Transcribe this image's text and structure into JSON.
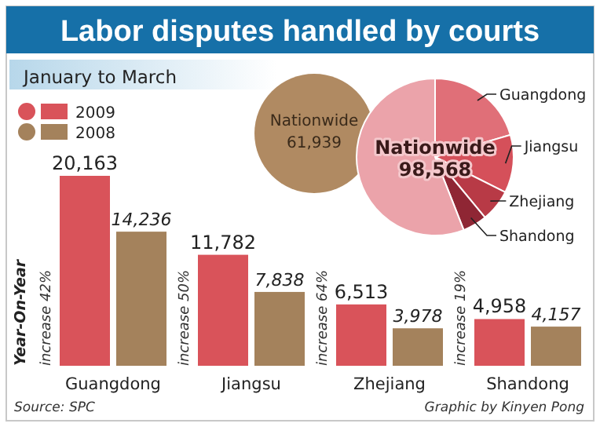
{
  "chart_data": [
    {
      "type": "bar",
      "title": "Labor disputes handled by courts",
      "subtitle": "January to March",
      "categories": [
        "Guangdong",
        "Jiangsu",
        "Zhejiang",
        "Shandong"
      ],
      "series": [
        {
          "name": "2009",
          "color": "#d9535a",
          "values": [
            20163,
            11782,
            6513,
            4958
          ],
          "value_labels": [
            "20,163",
            "11,782",
            "6,513",
            "4,958"
          ]
        },
        {
          "name": "2008",
          "color": "#a4825c",
          "values": [
            14236,
            7838,
            3978,
            4157
          ],
          "value_labels": [
            "14,236",
            "7,838",
            "3,978",
            "4,157"
          ]
        }
      ],
      "legend": "top left",
      "annotations": [
        "Year-On-Year",
        "increase 42%",
        "increase 50%",
        "increase 64%",
        "increase 19%",
        "Source: SPC",
        "Graphic by Kinyen Pong"
      ]
    },
    {
      "type": "pie",
      "categories": [
        "Guangdong",
        "Jiangsu",
        "Zhejiang",
        "Shandong",
        null
      ],
      "values": [
        20.46,
        11.95,
        6.61,
        5.03,
        55.95
      ],
      "colors": [
        "#e06f78",
        "#d5505a",
        "#b83a46",
        "#8f2634",
        "#eba3aa"
      ],
      "annotations": [
        "Nationwide\n98,568",
        "Nationwide\n61,939"
      ]
    }
  ]
}
